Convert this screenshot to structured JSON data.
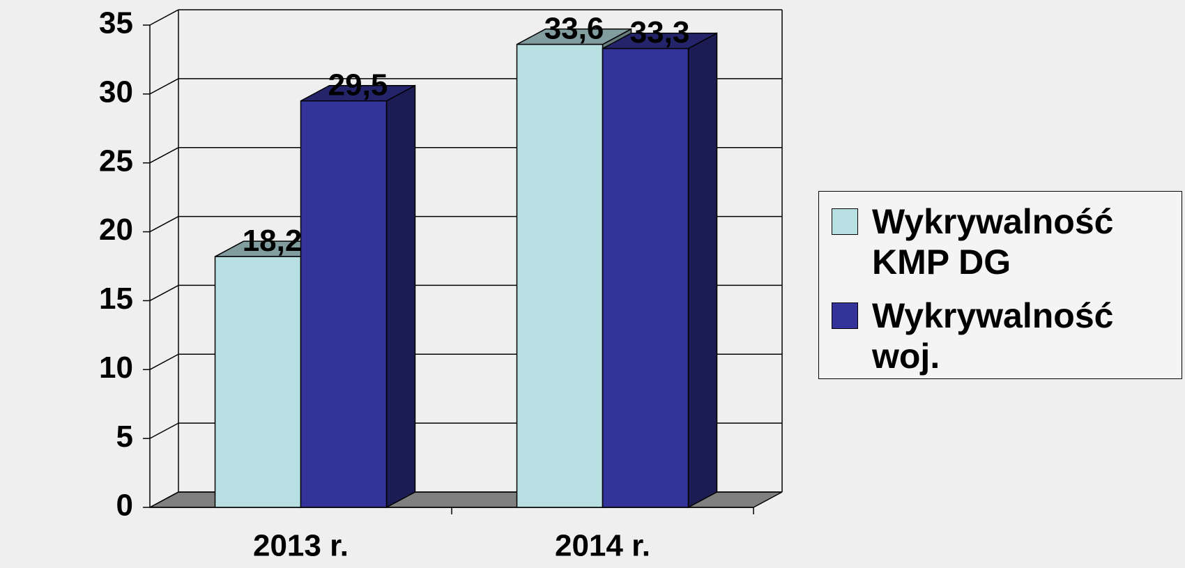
{
  "chart_data": {
    "type": "bar3d",
    "categories": [
      "2013 r.",
      "2014 r."
    ],
    "series": [
      {
        "name": "Wykrywalność KMP DG",
        "color": "#b8e0e3",
        "values": [
          18.2,
          33.6
        ],
        "value_labels": [
          "18,2",
          "33,6"
        ]
      },
      {
        "name": "Wykrywalność woj.",
        "color": "#333399",
        "values": [
          29.5,
          33.3
        ],
        "value_labels": [
          "29,5",
          "33,3"
        ]
      }
    ],
    "ylim": [
      0,
      35
    ],
    "yticks": [
      0,
      5,
      10,
      15,
      20,
      25,
      30,
      35
    ],
    "grid": true,
    "legend": "right"
  }
}
